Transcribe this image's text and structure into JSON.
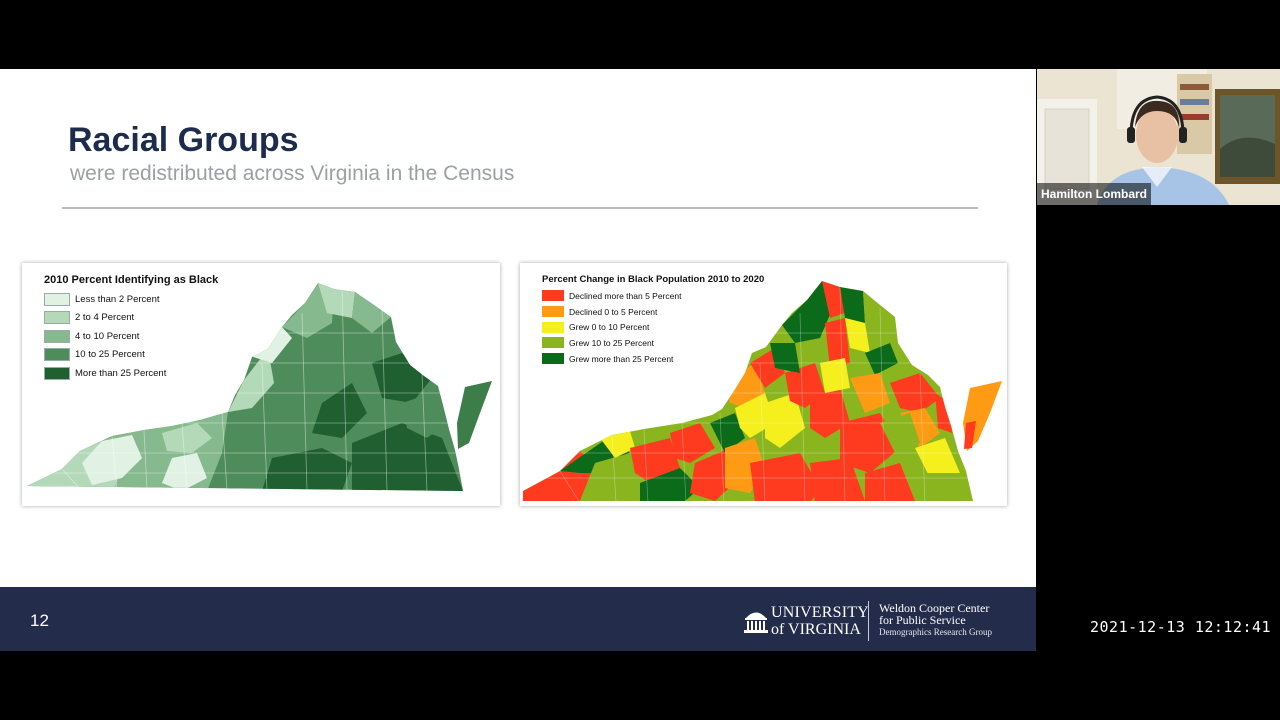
{
  "slide": {
    "title": "Racial Groups",
    "subtitle": "were redistributed across Virginia in the Census",
    "page_number": "12"
  },
  "map_left": {
    "title": "2010 Percent Identifying as Black",
    "legend": [
      {
        "label": "Less than 2 Percent",
        "color": "#e1f2e4"
      },
      {
        "label": "2 to 4 Percent",
        "color": "#b3d9b9"
      },
      {
        "label": "4 to 10 Percent",
        "color": "#86b98e"
      },
      {
        "label": "10 to 25 Percent",
        "color": "#4f8c5c"
      },
      {
        "label": "More than 25 Percent",
        "color": "#1f5f30"
      }
    ]
  },
  "map_right": {
    "title": "Percent Change in Black Population 2010 to 2020",
    "legend": [
      {
        "label": "Declined more than 5 Percent",
        "color": "#ff3b1f"
      },
      {
        "label": "Declined 0 to 5 Percent",
        "color": "#ff9a14"
      },
      {
        "label": "Grew 0 to 10 Percent",
        "color": "#f4ef1d"
      },
      {
        "label": "Grew 10 to 25 Percent",
        "color": "#8ab51f"
      },
      {
        "label": "Grew more than 25 Percent",
        "color": "#0b6b1b"
      }
    ]
  },
  "footer": {
    "university_line1": "UNIVERSITY",
    "university_line2": "of VIRGINIA",
    "center_line1": "Weldon Cooper Center",
    "center_line2": "for Public Service",
    "center_line3": "Demographics Research Group"
  },
  "webcam": {
    "participant_name": "Hamilton Lombard"
  },
  "recording": {
    "timestamp": "2021-12-13  12:12:41"
  }
}
